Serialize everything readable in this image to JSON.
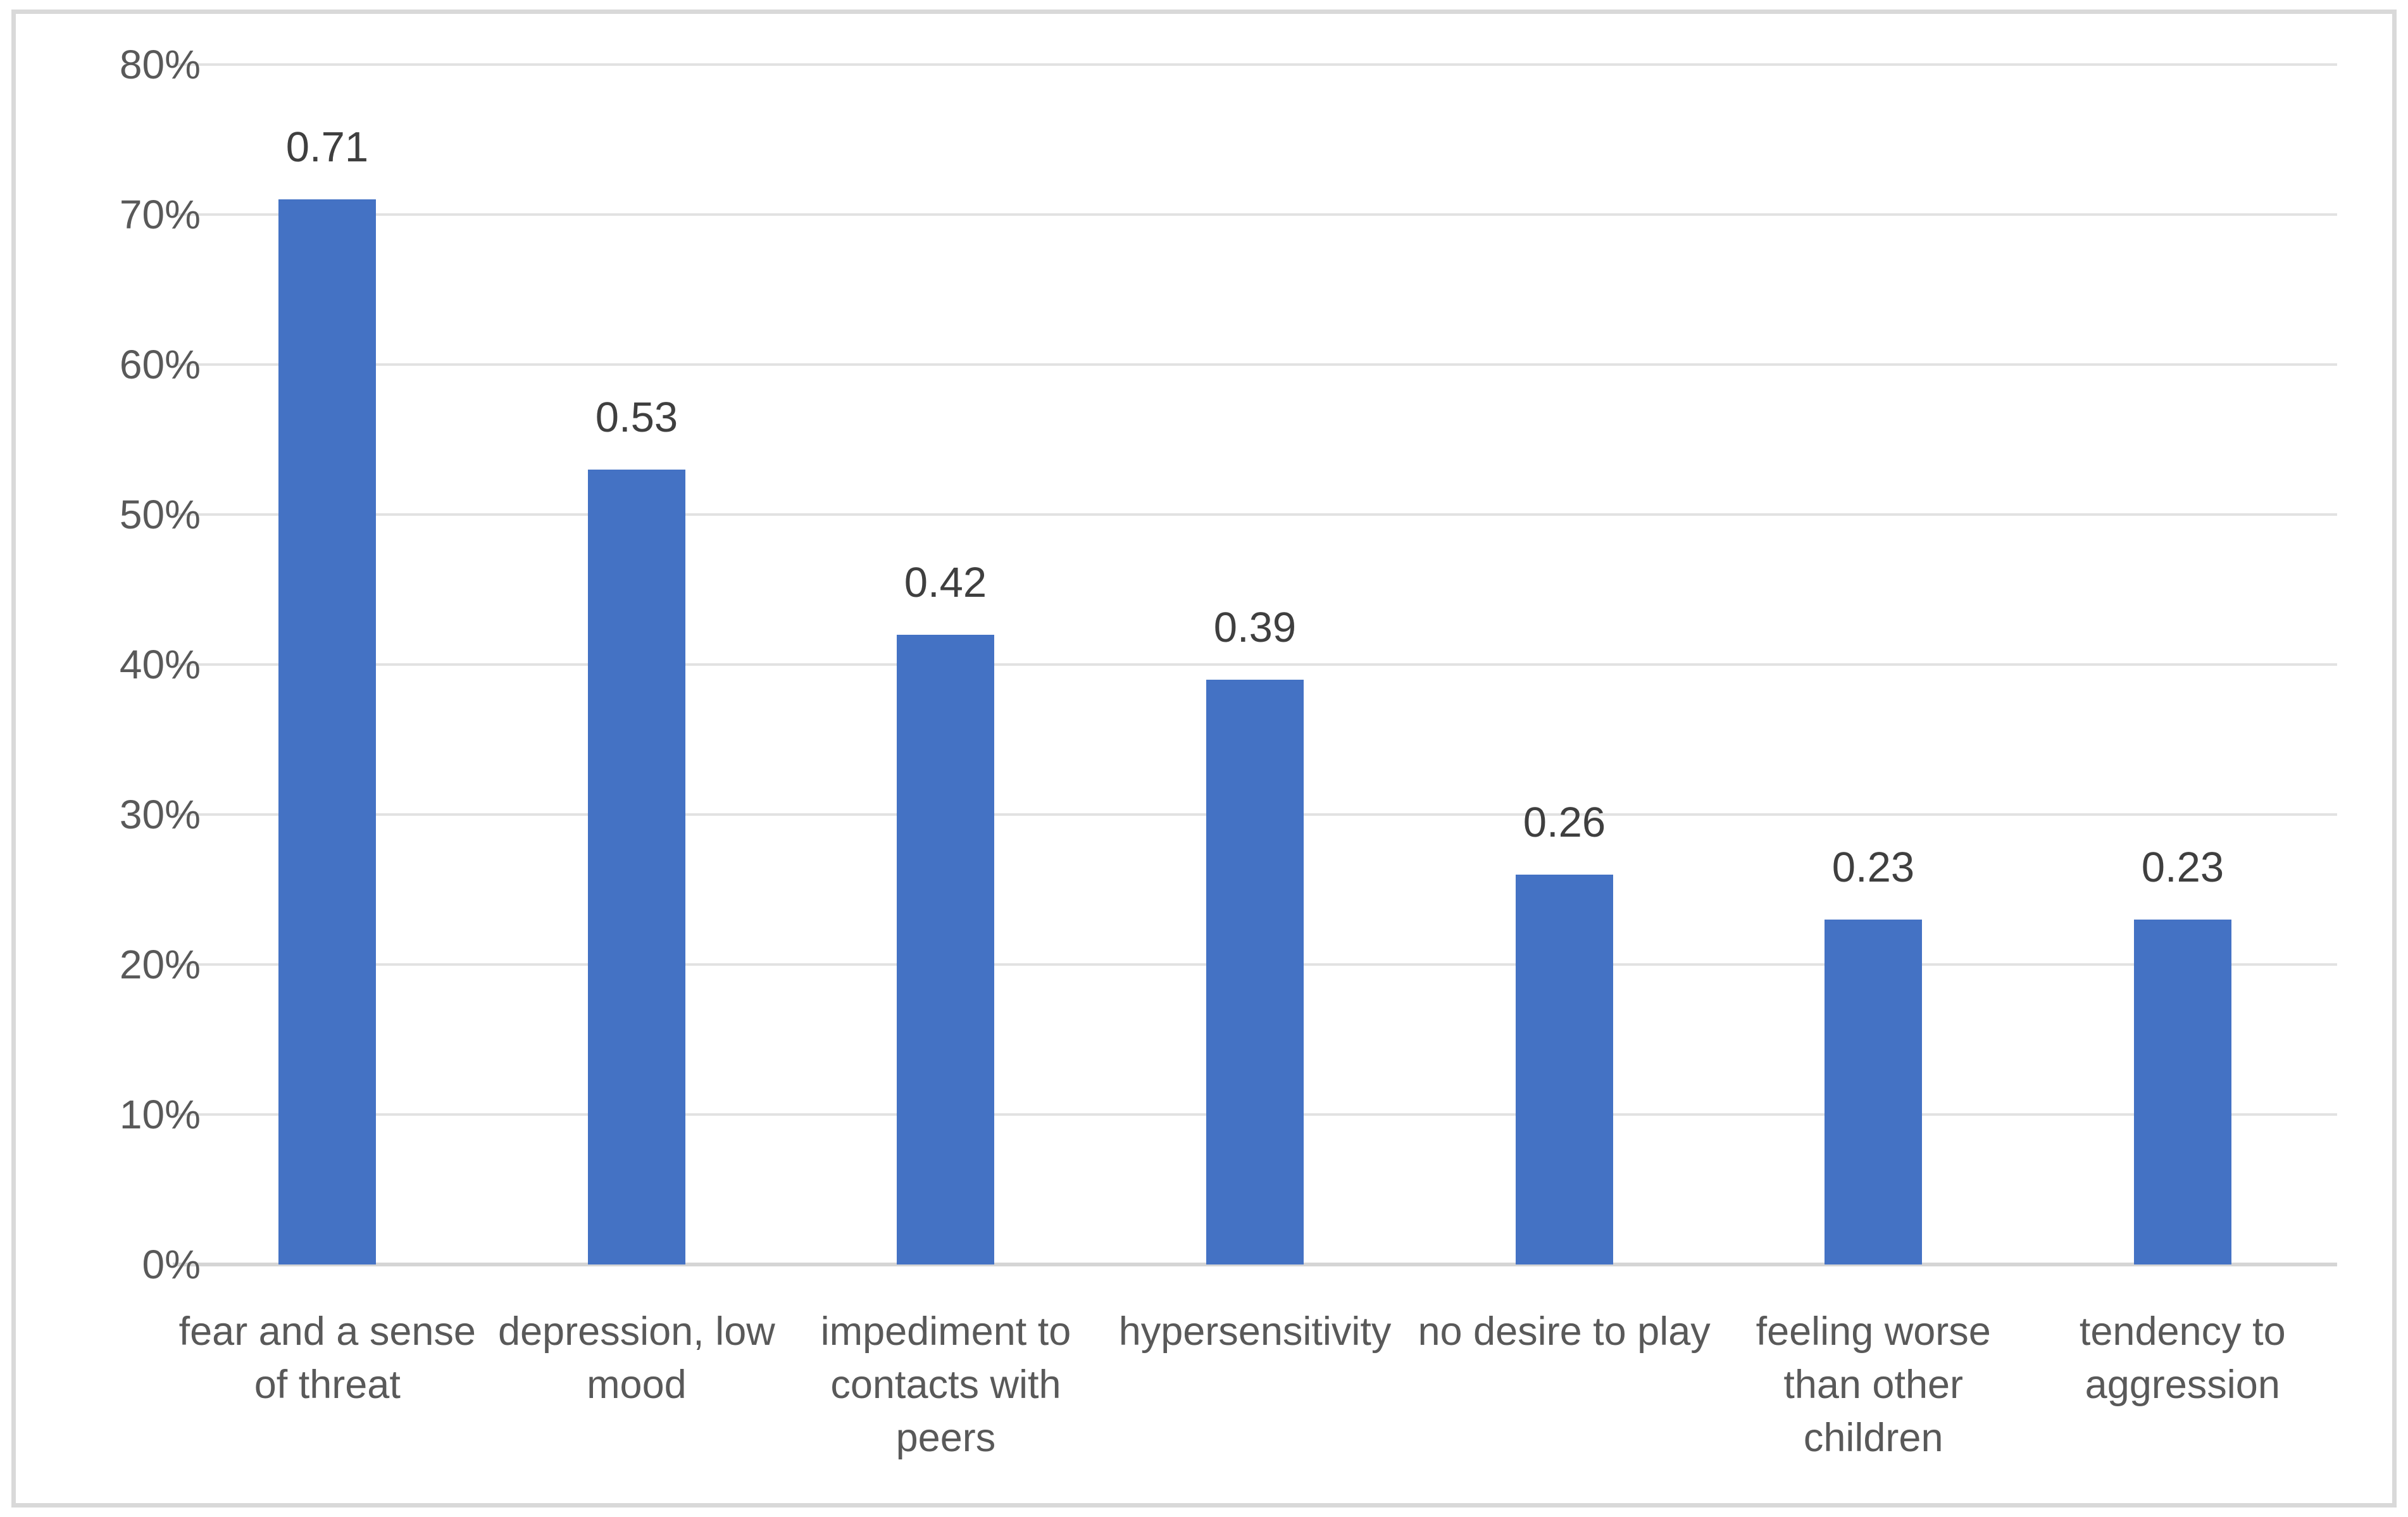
{
  "chart_data": {
    "type": "bar",
    "title": "",
    "xlabel": "",
    "ylabel": "",
    "categories": [
      "fear and a sense of threat",
      "depression, low mood",
      "impediment to contacts with peers",
      "hypersensitivity",
      "no desire to play",
      "feeling worse than other children",
      "tendency to aggression"
    ],
    "values": [
      0.71,
      0.53,
      0.42,
      0.39,
      0.26,
      0.23,
      0.23
    ],
    "data_labels": [
      "0.71",
      "0.53",
      "0.42",
      "0.39",
      "0.26",
      "0.23",
      "0.23"
    ],
    "y_ticks": [
      "80%",
      "70%",
      "60%",
      "50%",
      "40%",
      "30%",
      "20%",
      "10%",
      "0%"
    ],
    "ylim": [
      0,
      0.8
    ],
    "grid": true,
    "legend": "none",
    "colors": {
      "bar": "#4472C4",
      "gridline": "#E2E2E2",
      "axis_line": "#D5D5D5",
      "tick_text": "#595959",
      "category_text": "#595959",
      "data_label_text": "#3F3F3F",
      "frame_border": "#D9D9D9",
      "background": "#FFFFFF"
    }
  }
}
